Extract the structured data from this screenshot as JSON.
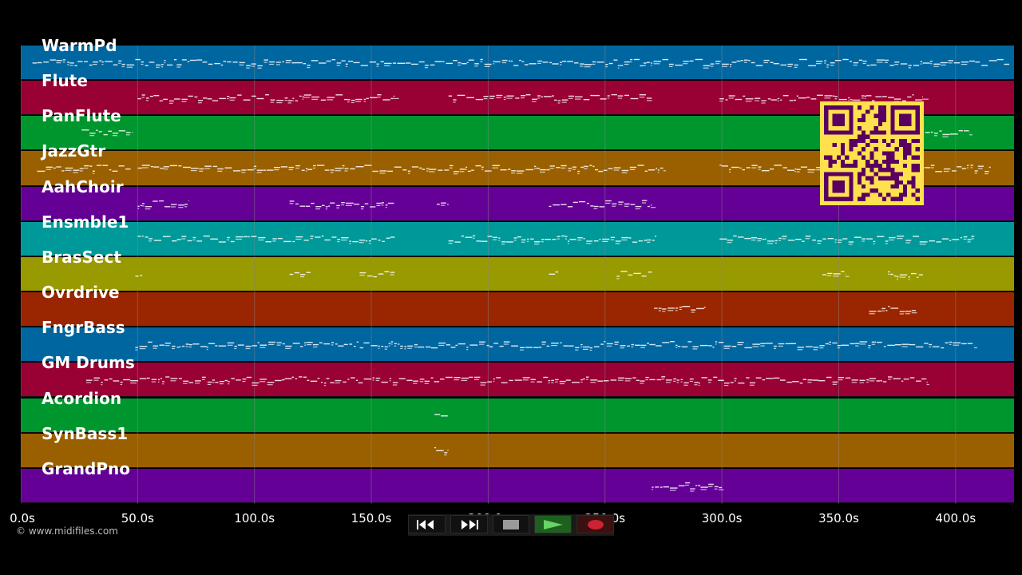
{
  "tracks": [
    {
      "label": "WarmPd",
      "color": "#0066a0"
    },
    {
      "label": "Flute",
      "color": "#990033"
    },
    {
      "label": "PanFlute",
      "color": "#00962e"
    },
    {
      "label": "JazzGtr",
      "color": "#9a6000"
    },
    {
      "label": "AahChoir",
      "color": "#640096"
    },
    {
      "label": "Ensmble1",
      "color": "#009999"
    },
    {
      "label": "BrasSect",
      "color": "#999900"
    },
    {
      "label": "Ovrdrive",
      "color": "#992600"
    },
    {
      "label": "FngrBass",
      "color": "#0066a0"
    },
    {
      "label": "GM Drums",
      "color": "#990033"
    },
    {
      "label": "Acordion",
      "color": "#00962e"
    },
    {
      "label": "SynBass1",
      "color": "#9a6000"
    },
    {
      "label": "GrandPno",
      "color": "#640096"
    }
  ],
  "note_segments": [
    {
      "track": 0,
      "ranges": [
        [
          5,
          300
        ],
        [
          300,
          423
        ]
      ]
    },
    {
      "track": 1,
      "ranges": [
        [
          50,
          160
        ],
        [
          183,
          270
        ],
        [
          299,
          386
        ]
      ]
    },
    {
      "track": 2,
      "ranges": [
        [
          26,
          48
        ],
        [
          387,
          406
        ]
      ]
    },
    {
      "track": 3,
      "ranges": [
        [
          7,
          47
        ],
        [
          50,
          275
        ],
        [
          299,
          415
        ]
      ]
    },
    {
      "track": 4,
      "ranges": [
        [
          50,
          72
        ],
        [
          115,
          160
        ],
        [
          178,
          183
        ],
        [
          226,
          270
        ]
      ]
    },
    {
      "track": 5,
      "ranges": [
        [
          50,
          160
        ],
        [
          183,
          272
        ],
        [
          299,
          408
        ]
      ]
    },
    {
      "track": 6,
      "ranges": [
        [
          49,
          52
        ],
        [
          115,
          124
        ],
        [
          145,
          160
        ],
        [
          226,
          230
        ],
        [
          255,
          270
        ],
        [
          343,
          353
        ],
        [
          371,
          386
        ]
      ]
    },
    {
      "track": 7,
      "ranges": [
        [
          271,
          293
        ],
        [
          363,
          383
        ]
      ]
    },
    {
      "track": 8,
      "ranges": [
        [
          49,
          408
        ]
      ]
    },
    {
      "track": 9,
      "ranges": [
        [
          28,
          388
        ]
      ]
    },
    {
      "track": 10,
      "ranges": [
        [
          177,
          183
        ]
      ]
    },
    {
      "track": 11,
      "ranges": [
        [
          177,
          183
        ]
      ]
    },
    {
      "track": 12,
      "ranges": [
        [
          270,
          300
        ]
      ]
    }
  ],
  "time_axis": {
    "max_seconds": 425,
    "ticks": [
      "0.0s",
      "50.0s",
      "100.0s",
      "150.0s",
      "200.0s",
      "250.0s",
      "300.0s",
      "350.0s",
      "400.0s"
    ],
    "tick_values": [
      0,
      50,
      100,
      150,
      200,
      250,
      300,
      350,
      400
    ]
  },
  "copyright": "© www.midifiles.com",
  "controls": {
    "rewind": "rewind-icon",
    "fast_forward": "fast-forward-icon",
    "stop": "stop-icon",
    "play": "play-icon",
    "record": "record-icon"
  },
  "colors": {
    "background": "#000000",
    "grid": "#888888",
    "note": "#ffffff",
    "qr_fg": "#ffe14d",
    "qr_bg": "#5a0060",
    "play_green": "#2e8b2e",
    "record_red": "#cc2233"
  }
}
